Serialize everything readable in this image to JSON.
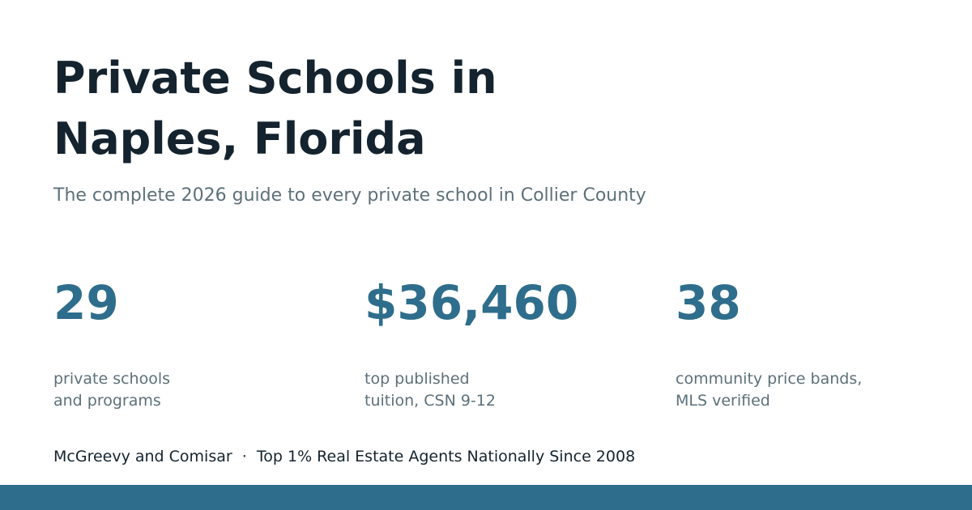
{
  "header": {
    "title_lines": [
      "Private Schools in",
      "Naples, Florida"
    ],
    "subtitle": "The complete 2026 guide to every private school in Collier County"
  },
  "stats": [
    {
      "value": "29",
      "label_lines": [
        "private schools",
        "and programs"
      ]
    },
    {
      "value": "$36,460",
      "label_lines": [
        "top published",
        "tuition, CSN 9-12"
      ]
    },
    {
      "value": "38",
      "label_lines": [
        "community price bands,",
        "MLS verified"
      ]
    }
  ],
  "footer": {
    "text": "McGreevy and Comisar  ·  Top 1% Real Estate Agents Nationally Since 2008"
  }
}
